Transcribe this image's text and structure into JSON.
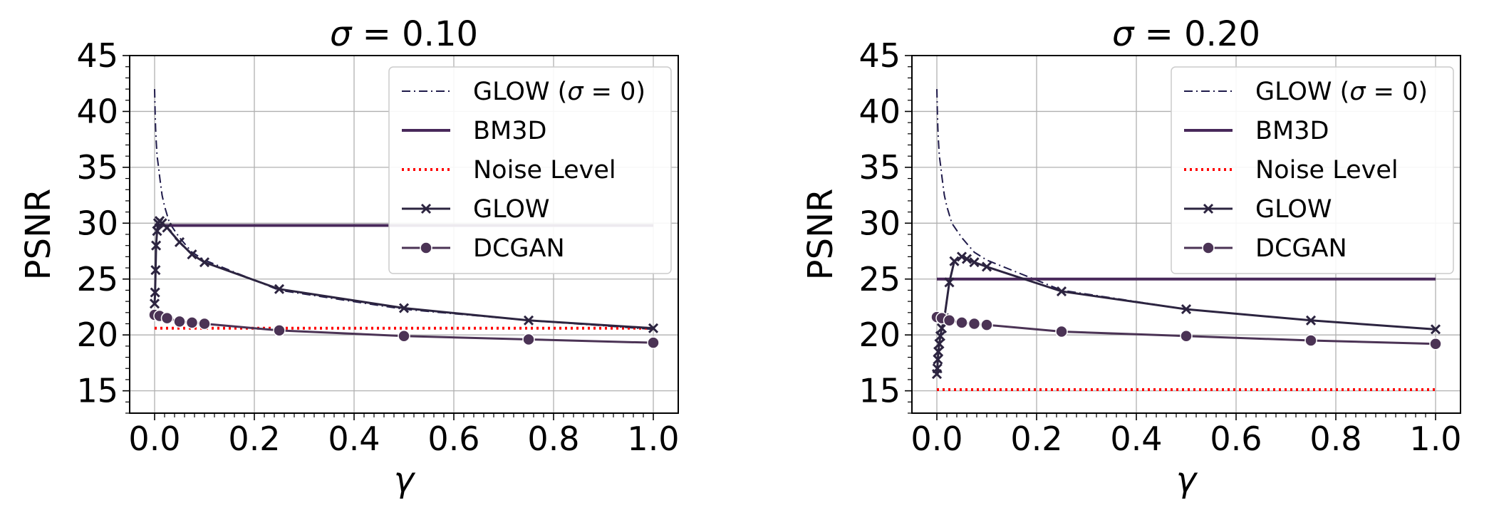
{
  "chart_data": [
    {
      "type": "line",
      "title_prefix": "σ",
      "title_rest": " = 0.10",
      "xlabel": "γ",
      "ylabel": "PSNR",
      "xlim": [
        -0.05,
        1.05
      ],
      "ylim": [
        13,
        45
      ],
      "xticks": [
        "0.0",
        "0.2",
        "0.4",
        "0.6",
        "0.8",
        "1.0"
      ],
      "yticks": [
        "15",
        "20",
        "25",
        "30",
        "35",
        "40",
        "45"
      ],
      "grid": true,
      "legend_position": "top-right",
      "series": [
        {
          "name_main": "GLOW (",
          "name_sym": "σ",
          "name_end": " = 0)",
          "style": "dashdot",
          "color": "#1f1a4a",
          "x": [
            0.0,
            0.001,
            0.002,
            0.003,
            0.005,
            0.008,
            0.01,
            0.015,
            0.02,
            0.03,
            0.05,
            0.075,
            0.1,
            0.25,
            0.5,
            0.75,
            1.0
          ],
          "y": [
            42,
            40,
            38.5,
            37.5,
            36,
            35,
            34.2,
            32.5,
            31.5,
            30.0,
            28.7,
            27.4,
            26.7,
            24.0,
            22.3,
            21.3,
            20.5
          ]
        },
        {
          "name": "BM3D",
          "style": "solid",
          "color": "#48285a",
          "x": [
            0.0,
            1.0
          ],
          "y": [
            29.8,
            29.8
          ]
        },
        {
          "name": "Noise Level",
          "style": "dotted",
          "color": "#ff0000",
          "x": [
            0.0,
            1.0
          ],
          "y": [
            20.6,
            20.6
          ]
        },
        {
          "name": "GLOW",
          "style": "x-marker",
          "color": "#2c2440",
          "x": [
            0.0,
            0.001,
            0.002,
            0.003,
            0.005,
            0.007,
            0.01,
            0.015,
            0.025,
            0.05,
            0.075,
            0.1,
            0.25,
            0.5,
            0.75,
            1.0
          ],
          "y": [
            22.8,
            23.8,
            25.8,
            28.0,
            29.3,
            30.0,
            30.2,
            30.0,
            29.6,
            28.3,
            27.2,
            26.5,
            24.1,
            22.4,
            21.3,
            20.6
          ]
        },
        {
          "name": "DCGAN",
          "style": "dot-marker",
          "color": "#4b3355",
          "x": [
            0.0,
            0.01,
            0.025,
            0.05,
            0.075,
            0.1,
            0.25,
            0.5,
            0.75,
            1.0
          ],
          "y": [
            21.8,
            21.7,
            21.5,
            21.2,
            21.1,
            21.0,
            20.4,
            19.9,
            19.6,
            19.3
          ]
        }
      ]
    },
    {
      "type": "line",
      "title_prefix": "σ",
      "title_rest": " = 0.20",
      "xlabel": "γ",
      "ylabel": "PSNR",
      "xlim": [
        -0.05,
        1.05
      ],
      "ylim": [
        13,
        45
      ],
      "xticks": [
        "0.0",
        "0.2",
        "0.4",
        "0.6",
        "0.8",
        "1.0"
      ],
      "yticks": [
        "15",
        "20",
        "25",
        "30",
        "35",
        "40",
        "45"
      ],
      "grid": true,
      "legend_position": "top-right",
      "series": [
        {
          "name_main": "GLOW (",
          "name_sym": "σ",
          "name_end": " = 0)",
          "style": "dashdot",
          "color": "#1f1a4a",
          "x": [
            0.0,
            0.001,
            0.002,
            0.003,
            0.005,
            0.008,
            0.01,
            0.015,
            0.02,
            0.03,
            0.05,
            0.075,
            0.1,
            0.25,
            0.5,
            0.75,
            1.0
          ],
          "y": [
            42,
            40,
            38.5,
            37.5,
            36,
            35,
            34.2,
            32.5,
            31.5,
            30.0,
            28.7,
            27.4,
            26.7,
            24.0,
            22.3,
            21.3,
            20.5
          ]
        },
        {
          "name": "BM3D",
          "style": "solid",
          "color": "#48285a",
          "x": [
            0.0,
            1.0
          ],
          "y": [
            25.0,
            25.0
          ]
        },
        {
          "name": "Noise Level",
          "style": "dotted",
          "color": "#ff0000",
          "x": [
            0.0,
            1.0
          ],
          "y": [
            15.1,
            15.1
          ]
        },
        {
          "name": "GLOW",
          "style": "x-marker",
          "color": "#2c2440",
          "x": [
            0.0,
            0.001,
            0.002,
            0.003,
            0.005,
            0.007,
            0.01,
            0.015,
            0.025,
            0.035,
            0.05,
            0.06,
            0.075,
            0.1,
            0.25,
            0.5,
            0.75,
            1.0
          ],
          "y": [
            16.5,
            17.0,
            17.8,
            18.5,
            19.2,
            19.9,
            20.6,
            21.5,
            24.7,
            26.6,
            27.0,
            26.8,
            26.5,
            26.1,
            23.9,
            22.3,
            21.3,
            20.5
          ]
        },
        {
          "name": "DCGAN",
          "style": "dot-marker",
          "color": "#4b3355",
          "x": [
            0.0,
            0.01,
            0.025,
            0.05,
            0.075,
            0.1,
            0.25,
            0.5,
            0.75,
            1.0
          ],
          "y": [
            21.6,
            21.5,
            21.3,
            21.1,
            21.0,
            20.9,
            20.3,
            19.9,
            19.5,
            19.2
          ]
        }
      ]
    }
  ]
}
